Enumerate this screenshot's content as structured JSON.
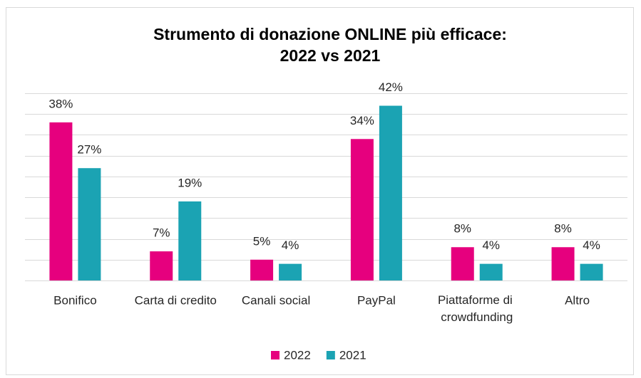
{
  "chart_data": {
    "type": "bar",
    "title": [
      "Strumento di donazione ONLINE più efficace:",
      "2022 vs 2021"
    ],
    "categories": [
      "Bonifico",
      "Carta di credito",
      "Canali social",
      "PayPal",
      "Piattaforme di crowdfunding",
      "Altro"
    ],
    "series": [
      {
        "name": "2022",
        "color": "#e6007e",
        "values": [
          38,
          7,
          5,
          34,
          8,
          8
        ],
        "value_labels": [
          "38%",
          "7%",
          "5%",
          "34%",
          "8%",
          "8%"
        ]
      },
      {
        "name": "2021",
        "color": "#1ba3b3",
        "values": [
          27,
          19,
          4,
          42,
          4,
          4
        ],
        "value_labels": [
          "27%",
          "19%",
          "4%",
          "42%",
          "4%",
          "4%"
        ]
      }
    ],
    "ylim": [
      0,
      45
    ],
    "yticks": [
      0,
      5,
      10,
      15,
      20,
      25,
      30,
      35,
      40,
      45
    ],
    "grid": true,
    "legend": "bottom"
  }
}
